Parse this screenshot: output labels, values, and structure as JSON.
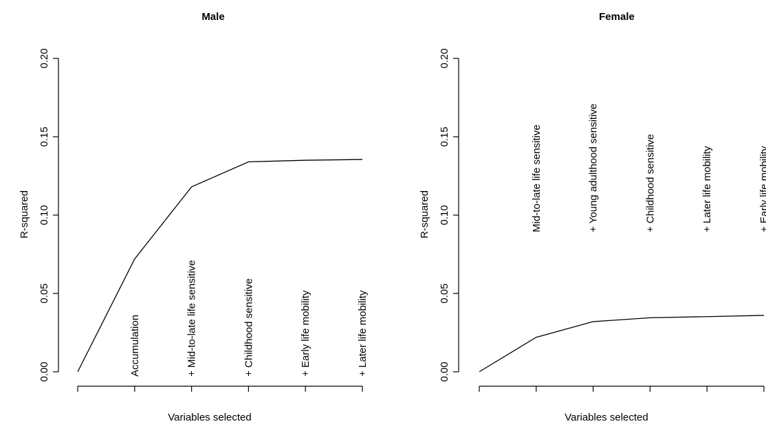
{
  "chart_data": [
    {
      "type": "line",
      "title": "Male",
      "xlabel": "Variables selected",
      "ylabel": "R-squared",
      "ylim": [
        0,
        0.2
      ],
      "yticks": [
        "0.00",
        "0.05",
        "0.10",
        "0.15",
        "0.20"
      ],
      "x": [
        0,
        1,
        2,
        3,
        4,
        5
      ],
      "values": [
        0.0,
        0.072,
        0.118,
        0.134,
        0.135,
        0.1355
      ],
      "annotations": [
        "Accumulation",
        "+ Mid-to-late life sensitive",
        "+ Childhood sensitive",
        "+ Early life mobility",
        "+ Later life mobility"
      ]
    },
    {
      "type": "line",
      "title": "Female",
      "xlabel": "Variables selected",
      "ylabel": "R-squared",
      "ylim": [
        0,
        0.2
      ],
      "yticks": [
        "0.00",
        "0.05",
        "0.10",
        "0.15",
        "0.20"
      ],
      "x": [
        0,
        1,
        2,
        3,
        4,
        5
      ],
      "values": [
        0.0,
        0.022,
        0.032,
        0.0345,
        0.0352,
        0.036
      ],
      "annotations": [
        "Mid-to-late life sensitive",
        "+ Young adulthood sensitive",
        "+ Childhood sensitive",
        "+ Later life mobility",
        "+ Early life mobility"
      ]
    }
  ]
}
